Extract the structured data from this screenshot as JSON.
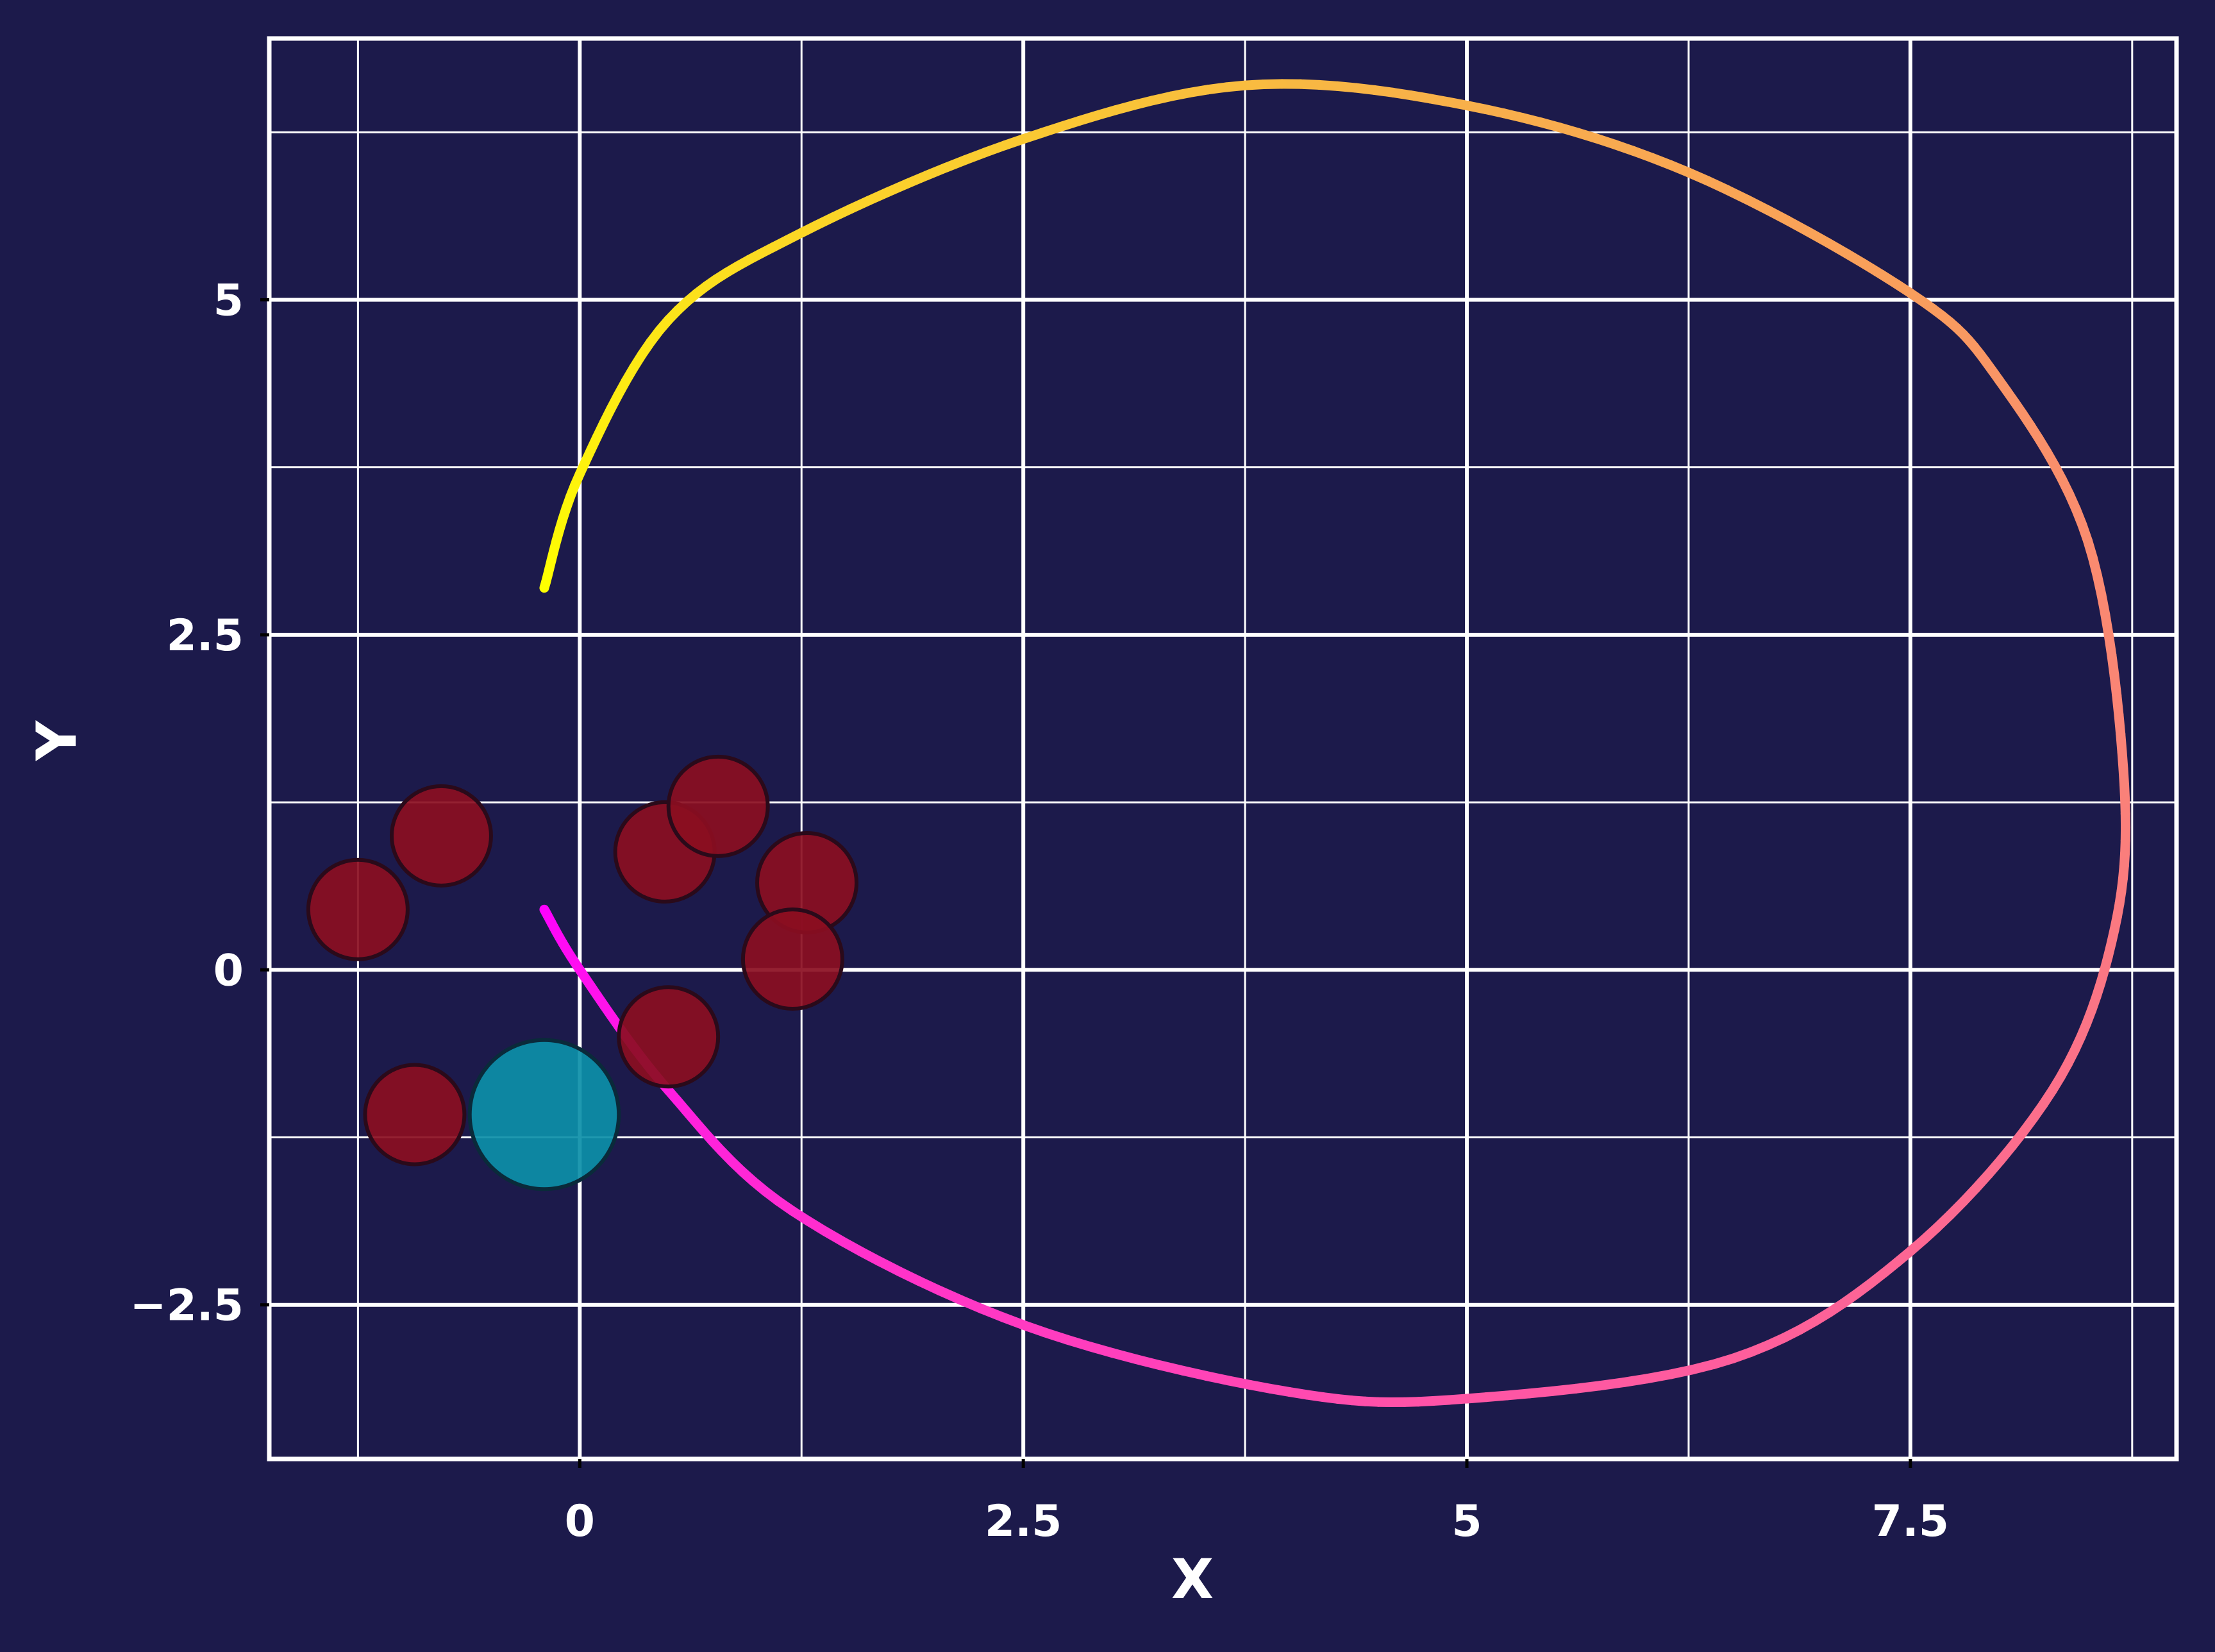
{
  "colors": {
    "background": "#1c1a4b",
    "grid": "#ffffff",
    "axes_frame": "#ffffff",
    "obstacle_fill": "#8b0e21",
    "obstacle_edge": "#2a0a1a",
    "agent_fill": "#0c8fa8",
    "agent_edge": "#0a2a3a",
    "path_start": "#ff00ff",
    "path_end": "#ffff00"
  },
  "chart_data": {
    "type": "scatter",
    "title": "",
    "xlabel": "X",
    "ylabel": "Y",
    "xlim": [
      -1.75,
      9.0
    ],
    "ylim": [
      -3.65,
      6.95
    ],
    "x_ticks": [
      {
        "value": 0,
        "label": "0"
      },
      {
        "value": 2.5,
        "label": "2.5"
      },
      {
        "value": 5,
        "label": "5"
      },
      {
        "value": 7.5,
        "label": "7.5"
      }
    ],
    "y_ticks": [
      {
        "value": -2.5,
        "label": "−2.5"
      },
      {
        "value": 0,
        "label": "0"
      },
      {
        "value": 2.5,
        "label": "2.5"
      },
      {
        "value": 5,
        "label": "5"
      }
    ],
    "x_minor_gridlines": [
      -1.25,
      1.25,
      3.75,
      6.25,
      8.75
    ],
    "y_minor_gridlines": [
      -1.25,
      1.25,
      3.75,
      6.25
    ],
    "grid": true,
    "legend": "none",
    "obstacles": {
      "radius": 0.28,
      "points": [
        {
          "x": -1.25,
          "y": 0.45
        },
        {
          "x": -0.78,
          "y": 1.0
        },
        {
          "x": 0.48,
          "y": 0.88
        },
        {
          "x": 0.78,
          "y": 1.22
        },
        {
          "x": 1.28,
          "y": 0.65
        },
        {
          "x": 1.2,
          "y": 0.08
        },
        {
          "x": 0.5,
          "y": -0.5
        },
        {
          "x": -0.93,
          "y": -1.08
        }
      ]
    },
    "agent": {
      "x": -0.2,
      "y": -1.08,
      "radius": 0.42
    },
    "trajectory": {
      "description_points": [
        {
          "x": -0.2,
          "y": 0.45
        },
        {
          "x": 0.0,
          "y": 0.0
        },
        {
          "x": 0.5,
          "y": -0.9
        },
        {
          "x": 1.2,
          "y": -1.8
        },
        {
          "x": 2.5,
          "y": -2.65
        },
        {
          "x": 4.0,
          "y": -3.15
        },
        {
          "x": 5.0,
          "y": -3.2
        },
        {
          "x": 6.5,
          "y": -2.9
        },
        {
          "x": 7.5,
          "y": -2.1
        },
        {
          "x": 8.3,
          "y": -0.9
        },
        {
          "x": 8.65,
          "y": 0.3
        },
        {
          "x": 8.7,
          "y": 1.5
        },
        {
          "x": 8.5,
          "y": 3.2
        },
        {
          "x": 8.0,
          "y": 4.4
        },
        {
          "x": 7.5,
          "y": 5.05
        },
        {
          "x": 6.25,
          "y": 5.95
        },
        {
          "x": 5.0,
          "y": 6.45
        },
        {
          "x": 3.75,
          "y": 6.6
        },
        {
          "x": 2.5,
          "y": 6.2
        },
        {
          "x": 1.25,
          "y": 5.5
        },
        {
          "x": 0.5,
          "y": 4.85
        },
        {
          "x": 0.0,
          "y": 3.7
        },
        {
          "x": -0.2,
          "y": 2.85
        }
      ]
    }
  }
}
